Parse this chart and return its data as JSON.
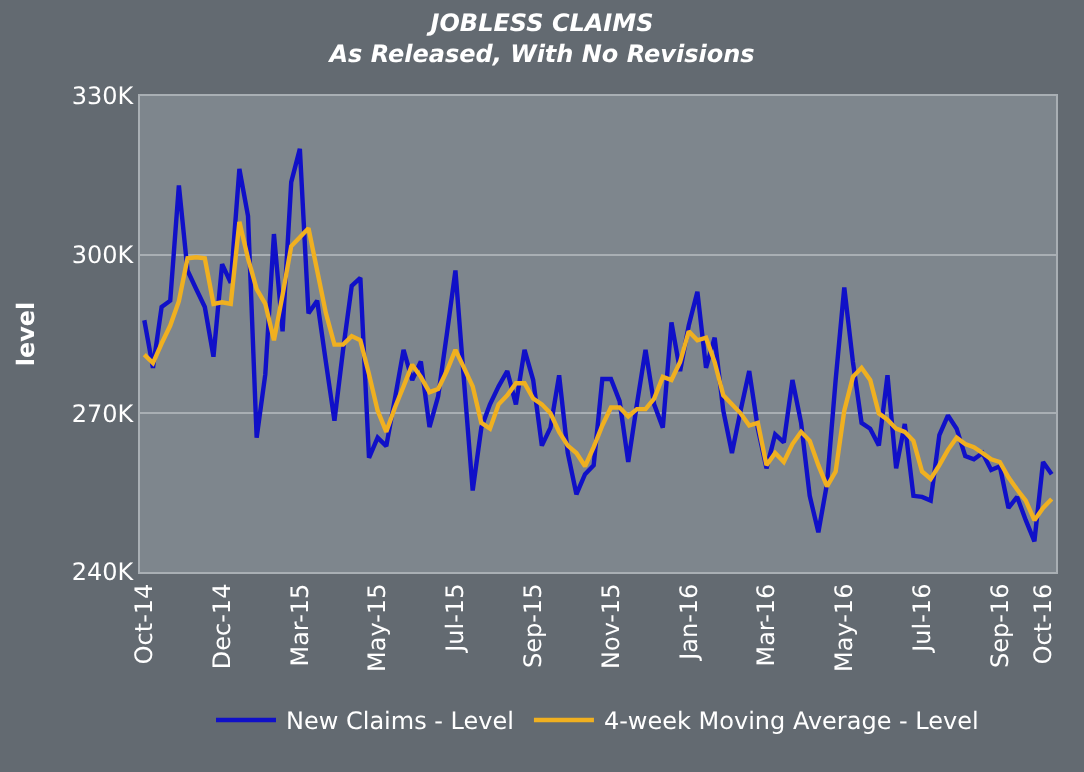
{
  "chart_data": {
    "type": "line",
    "title": "JOBLESS CLAIMS",
    "subtitle": "As Released, With No Revisions",
    "ylabel": "level",
    "categories": [
      "Oct-14",
      null,
      null,
      null,
      null,
      null,
      null,
      null,
      null,
      "Dec-14",
      null,
      null,
      null,
      null,
      null,
      null,
      null,
      null,
      "Mar-15",
      null,
      null,
      null,
      null,
      null,
      null,
      null,
      null,
      "May-15",
      null,
      null,
      null,
      null,
      null,
      null,
      null,
      null,
      "Jul-15",
      null,
      null,
      null,
      null,
      null,
      null,
      null,
      null,
      "Sep-15",
      null,
      null,
      null,
      null,
      null,
      null,
      null,
      null,
      "Nov-15",
      null,
      null,
      null,
      null,
      null,
      null,
      null,
      null,
      "Jan-16",
      null,
      null,
      null,
      null,
      null,
      null,
      null,
      null,
      "Mar-16",
      null,
      null,
      null,
      null,
      null,
      null,
      null,
      null,
      "May-16",
      null,
      null,
      null,
      null,
      null,
      null,
      null,
      null,
      "Jul-16",
      null,
      null,
      null,
      null,
      null,
      null,
      null,
      null,
      "Sep-16",
      null,
      null,
      null,
      null,
      "Oct-16",
      null
    ],
    "series": [
      {
        "name": "New Claims - Level",
        "color": "#1010c8",
        "values": [
          287.6,
          278.6,
          290.1,
          291.3,
          313.1,
          297,
          293.5,
          290.1,
          280.7,
          298.2,
          294.7,
          316.2,
          307.3,
          265.4,
          277.4,
          303.9,
          285.5,
          313.7,
          320,
          288.9,
          291.3,
          279.8,
          268.6,
          282,
          294.1,
          295.6,
          261.6,
          265.4,
          263.8,
          272.8,
          282,
          276.3,
          279.8,
          267.4,
          273.2,
          284.9,
          297,
          276,
          255.4,
          267.3,
          271.7,
          275.1,
          278,
          271.7,
          282,
          276.3,
          263.9,
          267.3,
          277.2,
          262.5,
          254.7,
          258.5,
          260.2,
          276.5,
          276.5,
          272.3,
          260.8,
          271.7,
          282,
          271.7,
          267.3,
          287.2,
          278,
          286.6,
          293,
          278.6,
          284.3,
          270.5,
          262.5,
          270.5,
          278,
          267.1,
          259.6,
          266,
          264.5,
          276.3,
          268.2,
          254.4,
          247.5,
          256.7,
          276.3,
          293.8,
          279.7,
          268.2,
          267.1,
          263.9,
          277.2,
          259.6,
          268,
          254.4,
          254.2,
          253.5,
          265.9,
          269.6,
          267.1,
          261.9,
          261.3,
          262.5,
          259.3,
          260,
          252.1,
          254.2,
          249.8,
          245.8,
          260.8,
          258.5
        ]
      },
      {
        "name": "4-week Moving Average - Level",
        "color": "#f0b020",
        "values": [
          281.1,
          279.5,
          283.2,
          286.6,
          291.2,
          299.3,
          299.5,
          299.3,
          290.7,
          291,
          290.7,
          306.2,
          299.3,
          293.5,
          290.7,
          283.8,
          292.4,
          301.6,
          303.3,
          305,
          297,
          289,
          283,
          283,
          284.6,
          283.8,
          277.4,
          270.5,
          266.5,
          271.1,
          275.1,
          279.2,
          276.9,
          274,
          274.6,
          278,
          282,
          278.6,
          275.1,
          268.2,
          267.1,
          271.7,
          273.4,
          275.7,
          275.7,
          272.8,
          271.7,
          270,
          266.5,
          263.9,
          262.5,
          260,
          263.6,
          267.7,
          271.1,
          271.1,
          269.4,
          270.8,
          270.8,
          272.8,
          276.9,
          276.3,
          279.7,
          285.5,
          283.8,
          284.3,
          279.7,
          273.4,
          271.7,
          270,
          267.7,
          268.2,
          260.2,
          262.5,
          260.8,
          264.2,
          266.5,
          264.8,
          260.2,
          256.2,
          259,
          270.5,
          276.9,
          278.6,
          276.3,
          270,
          268.8,
          267.1,
          266.5,
          264.8,
          259,
          257.6,
          260.2,
          263.1,
          265.4,
          264.2,
          263.6,
          262.5,
          261.3,
          260.8,
          257.9,
          255.6,
          253.5,
          249.8,
          252.1,
          253.8
        ]
      }
    ],
    "ylim": [
      240,
      330
    ],
    "yticks": [
      {
        "value": 240,
        "label": "240K"
      },
      {
        "value": 270,
        "label": "270K"
      },
      {
        "value": 300,
        "label": "300K"
      },
      {
        "value": 330,
        "label": "330K"
      }
    ],
    "grid": "y",
    "legend": "bottom",
    "marker": "none",
    "line_style": "solid"
  }
}
